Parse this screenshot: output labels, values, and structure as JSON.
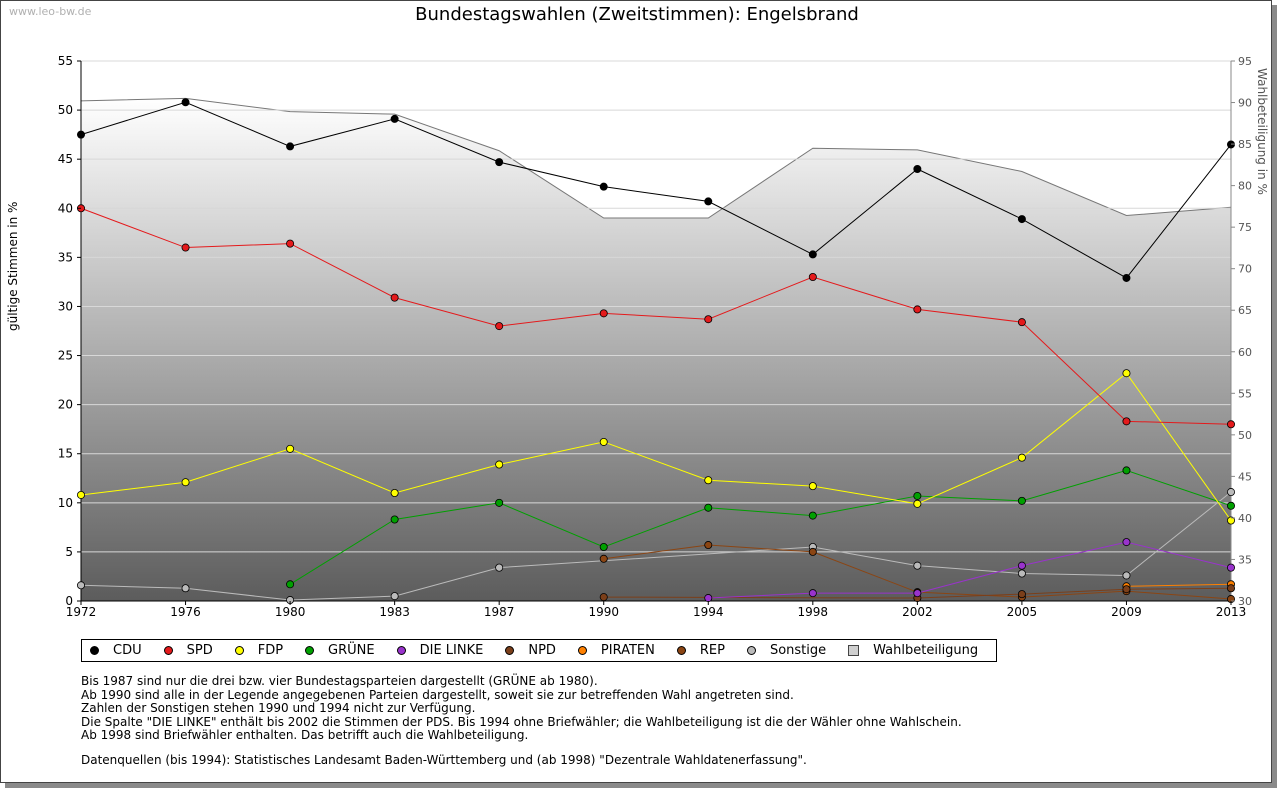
{
  "watermark": "www.leo-bw.de",
  "chart_data": {
    "type": "line",
    "title": "Bundestagswahlen (Zweitstimmen): Engelsbrand",
    "ylabel": "gültige Stimmen in %",
    "y2label": "Wahlbeteiligung in %",
    "ylim": [
      0,
      55
    ],
    "y2lim": [
      30,
      95
    ],
    "yticks": [
      0,
      5,
      10,
      15,
      20,
      25,
      30,
      35,
      40,
      45,
      50,
      55
    ],
    "y2ticks": [
      30,
      35,
      40,
      45,
      50,
      55,
      60,
      65,
      70,
      75,
      80,
      85,
      90,
      95
    ],
    "x": [
      "1972",
      "1976",
      "1980",
      "1983",
      "1987",
      "1990",
      "1994",
      "1998",
      "2002",
      "2005",
      "2009",
      "2013"
    ],
    "grid": true,
    "legend_position": "bottom",
    "series": [
      {
        "name": "CDU",
        "color": "#000000",
        "values": [
          47.5,
          50.8,
          46.3,
          49.1,
          44.7,
          42.2,
          40.7,
          35.3,
          44.0,
          38.9,
          32.9,
          46.5
        ]
      },
      {
        "name": "SPD",
        "color": "#e41a1c",
        "values": [
          40.0,
          36.0,
          36.4,
          30.9,
          28.0,
          29.3,
          28.7,
          33.0,
          29.7,
          28.4,
          18.3,
          18.0
        ]
      },
      {
        "name": "FDP",
        "color": "#ffff00",
        "values": [
          10.8,
          12.1,
          15.5,
          11.0,
          13.9,
          16.2,
          12.3,
          11.7,
          9.9,
          14.6,
          23.2,
          8.2
        ]
      },
      {
        "name": "GRÜNE",
        "color": "#00a000",
        "values": [
          null,
          null,
          1.7,
          8.3,
          10.0,
          5.5,
          9.5,
          8.7,
          10.7,
          10.2,
          13.3,
          9.7
        ]
      },
      {
        "name": "DIE LINKE",
        "color": "#9933cc",
        "values": [
          null,
          null,
          null,
          null,
          null,
          null,
          0.3,
          0.8,
          0.8,
          3.6,
          6.0,
          3.4
        ]
      },
      {
        "name": "NPD",
        "color": "#7b3f1a",
        "values": [
          null,
          null,
          null,
          null,
          null,
          0.4,
          null,
          null,
          0.3,
          0.7,
          1.2,
          1.3
        ]
      },
      {
        "name": "PIRATEN",
        "color": "#ff8000",
        "values": [
          null,
          null,
          null,
          null,
          null,
          null,
          null,
          null,
          null,
          null,
          1.5,
          1.7
        ]
      },
      {
        "name": "REP",
        "color": "#8b4513",
        "values": [
          null,
          null,
          null,
          null,
          null,
          4.3,
          5.7,
          5.0,
          0.9,
          0.4,
          1.0,
          0.2
        ]
      },
      {
        "name": "Sonstige",
        "color": "#bbbbbb",
        "values": [
          1.6,
          1.3,
          0.1,
          0.5,
          3.4,
          null,
          null,
          5.5,
          3.6,
          2.8,
          2.6,
          11.1
        ]
      }
    ],
    "turnout": {
      "name": "Wahlbeteiligung",
      "color": "#d0d0d0",
      "values": [
        90.2,
        90.5,
        88.9,
        88.6,
        84.2,
        76.1,
        76.1,
        84.5,
        84.3,
        81.7,
        76.4,
        77.4
      ]
    }
  },
  "notes": [
    "Bis 1987 sind nur die drei bzw. vier Bundestagsparteien dargestellt (GRÜNE ab 1980).",
    "Ab 1990 sind alle in der Legende angegebenen Parteien dargestellt, soweit sie zur betreffenden Wahl angetreten sind.",
    "Zahlen der Sonstigen stehen 1990 und 1994 nicht zur Verfügung.",
    "Die Spalte \"DIE LINKE\" enthält bis 2002 die Stimmen der PDS. Bis 1994 ohne Briefwähler; die Wahlbeteiligung ist die der Wähler ohne Wahlschein.",
    "Ab 1998 sind Briefwähler enthalten. Das betrifft auch die Wahlbeteiligung."
  ],
  "source": "Datenquellen (bis 1994): Statistisches Landesamt Baden-Württemberg und (ab 1998) \"Dezentrale Wahldatenerfassung\"."
}
